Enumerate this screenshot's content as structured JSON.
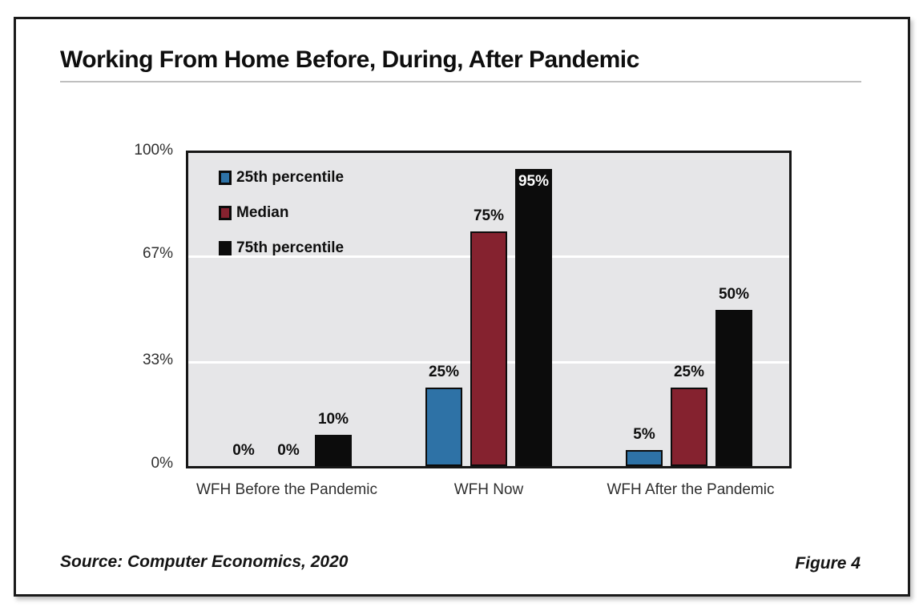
{
  "title": "Working From Home Before, During, After Pandemic",
  "footer": {
    "source": "Source: Computer Economics, 2020",
    "figure_label": "Figure 4"
  },
  "chart_data": {
    "type": "bar",
    "title": "Working From Home Before, During, After Pandemic",
    "categories": [
      "WFH Before the Pandemic",
      "WFH Now",
      "WFH After the Pandemic"
    ],
    "series": [
      {
        "name": "25th percentile",
        "color": "#2e72a6",
        "values": [
          0,
          25,
          5
        ],
        "labels": [
          "0%",
          "25%",
          "5%"
        ]
      },
      {
        "name": "Median",
        "color": "#85222f",
        "values": [
          0,
          75,
          25
        ],
        "labels": [
          "0%",
          "75%",
          "25%"
        ]
      },
      {
        "name": "75th percentile",
        "color": "#0c0c0c",
        "values": [
          10,
          95,
          50
        ],
        "labels": [
          "10%",
          "95%",
          "50%"
        ]
      }
    ],
    "xlabel": "",
    "ylabel": "",
    "ylim": [
      0,
      100
    ],
    "y_ticks": [
      {
        "value": 0,
        "label": "0%"
      },
      {
        "value": 33,
        "label": "33%"
      },
      {
        "value": 67,
        "label": "67%"
      },
      {
        "value": 100,
        "label": "100%"
      }
    ],
    "grid": true,
    "gridline_color": "#ffffff",
    "plot_bg": "#e6e6e8",
    "bar_border_color": "#0c0c0c",
    "legend_position": "top-left",
    "inside_label_threshold": 90,
    "inside_label_color": "#ffffff"
  }
}
